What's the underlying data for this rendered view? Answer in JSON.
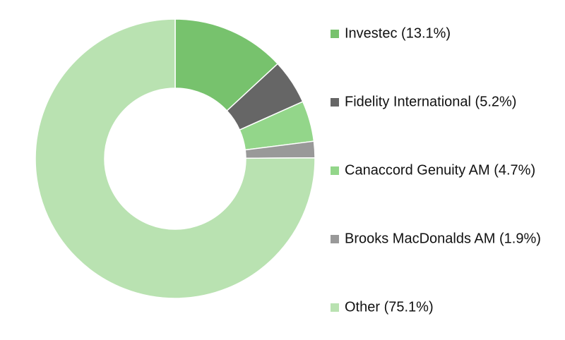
{
  "chart_data": {
    "type": "donut",
    "categories": [
      "Investec (13.1%)",
      "Fidelity International (5.2%)",
      "Canaccord Genuity AM (4.7%)",
      "Brooks MacDonalds AM (1.9%)",
      "Other (75.1%)"
    ],
    "values": [
      13.1,
      5.2,
      4.7,
      1.9,
      75.1
    ],
    "colors": [
      "#77c26d",
      "#666666",
      "#93d68a",
      "#999999",
      "#b9e2b1"
    ],
    "legend": "right"
  }
}
